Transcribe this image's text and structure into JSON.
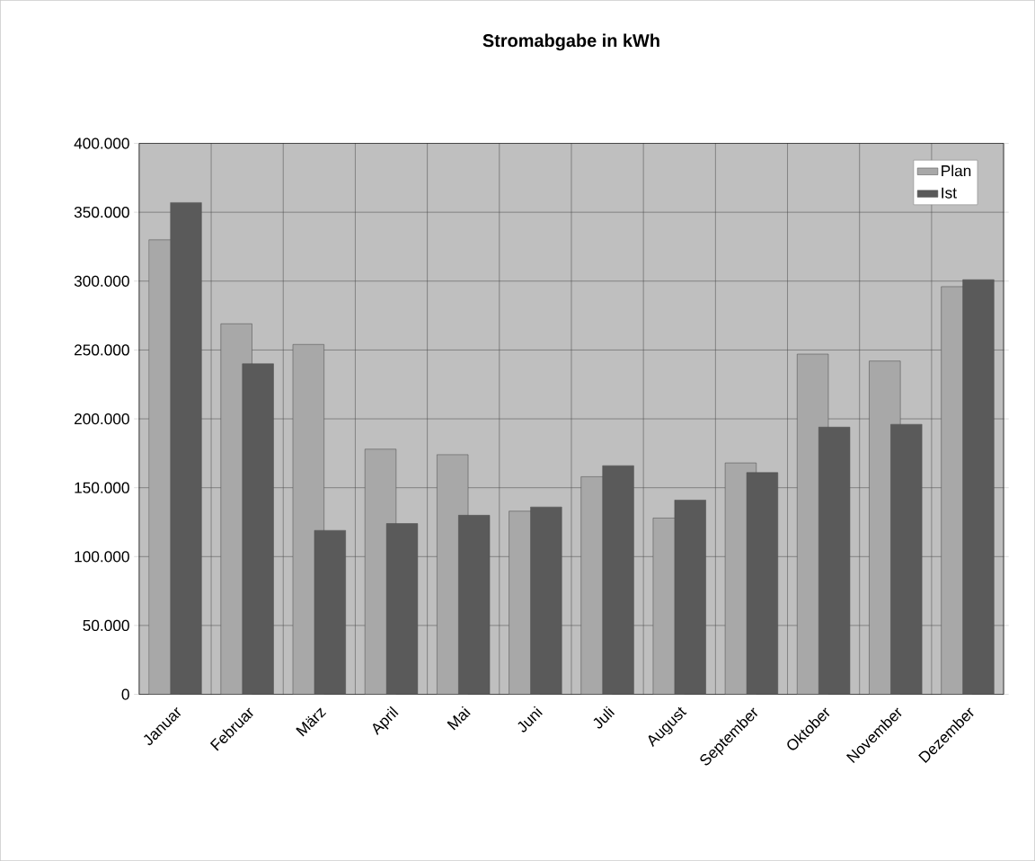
{
  "chart_data": {
    "type": "bar",
    "title": "Stromabgabe in kWh",
    "categories": [
      "Januar",
      "Februar",
      "März",
      "April",
      "Mai",
      "Juni",
      "Juli",
      "August",
      "September",
      "Oktober",
      "November",
      "Dezember"
    ],
    "series": [
      {
        "name": "Plan",
        "color": "#a8a8a8",
        "values": [
          330000,
          269000,
          254000,
          178000,
          174000,
          133000,
          158000,
          128000,
          168000,
          247000,
          242000,
          296000
        ]
      },
      {
        "name": "Ist",
        "color": "#5a5a5a",
        "values": [
          357000,
          240000,
          119000,
          124000,
          130000,
          136000,
          166000,
          141000,
          161000,
          194000,
          196000,
          301000
        ]
      }
    ],
    "ylim": [
      0,
      400000
    ],
    "yticks": [
      {
        "value": 0,
        "label": "0"
      },
      {
        "value": 50000,
        "label": "50.000"
      },
      {
        "value": 100000,
        "label": "100.000"
      },
      {
        "value": 150000,
        "label": "150.000"
      },
      {
        "value": 200000,
        "label": "200.000"
      },
      {
        "value": 250000,
        "label": "250.000"
      },
      {
        "value": 300000,
        "label": "300.000"
      },
      {
        "value": 350000,
        "label": "350.000"
      },
      {
        "value": 400000,
        "label": "400.000"
      }
    ],
    "grid": true,
    "legend": "top right"
  }
}
